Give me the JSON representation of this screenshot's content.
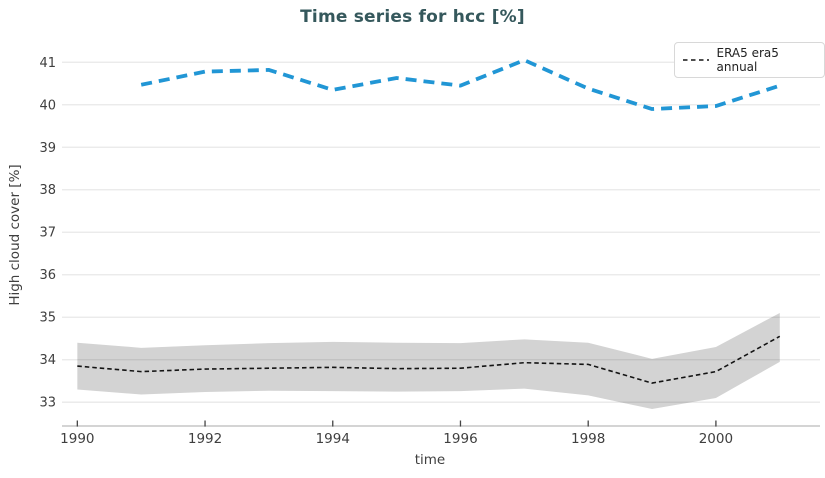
{
  "chart_data": {
    "type": "line",
    "title": "Time series for hcc [%]",
    "xlabel": "time",
    "ylabel": "High cloud cover [%]",
    "xlim": [
      1989.76,
      2001.63
    ],
    "ylim": [
      32.44,
      41.43
    ],
    "xticks": [
      1990,
      1992,
      1994,
      1996,
      1998,
      2000
    ],
    "yticks": [
      33,
      34,
      35,
      36,
      37,
      38,
      39,
      40,
      41
    ],
    "grid": "horizontal",
    "legend": [
      {
        "label": "ERA5 era5 annual",
        "sample": "black-dashed-line",
        "position": "top-right"
      }
    ],
    "series": [
      {
        "name": "ERA5 era5 annual",
        "color": "#141414",
        "dash": [
          4.5,
          3
        ],
        "line_width": 1.6,
        "x": [
          1990,
          1991,
          1992,
          1993,
          1994,
          1995,
          1996,
          1997,
          1998,
          1999,
          2000,
          2001
        ],
        "values": [
          33.85,
          33.72,
          33.78,
          33.8,
          33.82,
          33.79,
          33.8,
          33.93,
          33.89,
          33.45,
          33.72,
          34.55
        ],
        "band_upper": [
          34.4,
          34.28,
          34.34,
          34.39,
          34.42,
          34.4,
          34.39,
          34.48,
          34.4,
          34.02,
          34.3,
          35.1
        ],
        "band_lower": [
          33.3,
          33.18,
          33.24,
          33.27,
          33.26,
          33.25,
          33.26,
          33.32,
          33.16,
          32.84,
          33.1,
          33.95
        ],
        "band_color": "#d3d3d3"
      },
      {
        "name": "",
        "color": "#2196d5",
        "dash": [
          11,
          7
        ],
        "line_width": 3.8,
        "x": [
          1991,
          1992,
          1993,
          1994,
          1995,
          1996,
          1997,
          1998,
          1999,
          2000,
          2001
        ],
        "values": [
          40.47,
          40.78,
          40.82,
          40.35,
          40.63,
          40.45,
          41.05,
          40.38,
          39.9,
          39.97,
          40.45
        ]
      }
    ],
    "colors": {
      "title": "#35585c",
      "tick_label": "#3f3f3f",
      "grid": "rgba(0,0,0,0.09)",
      "axis_line": "#d4d4d4",
      "tick_mark": "#444444",
      "blue_series": "#2196d5",
      "black_series": "#141414",
      "band": "#d3d3d3",
      "background": "#ffffff"
    }
  }
}
